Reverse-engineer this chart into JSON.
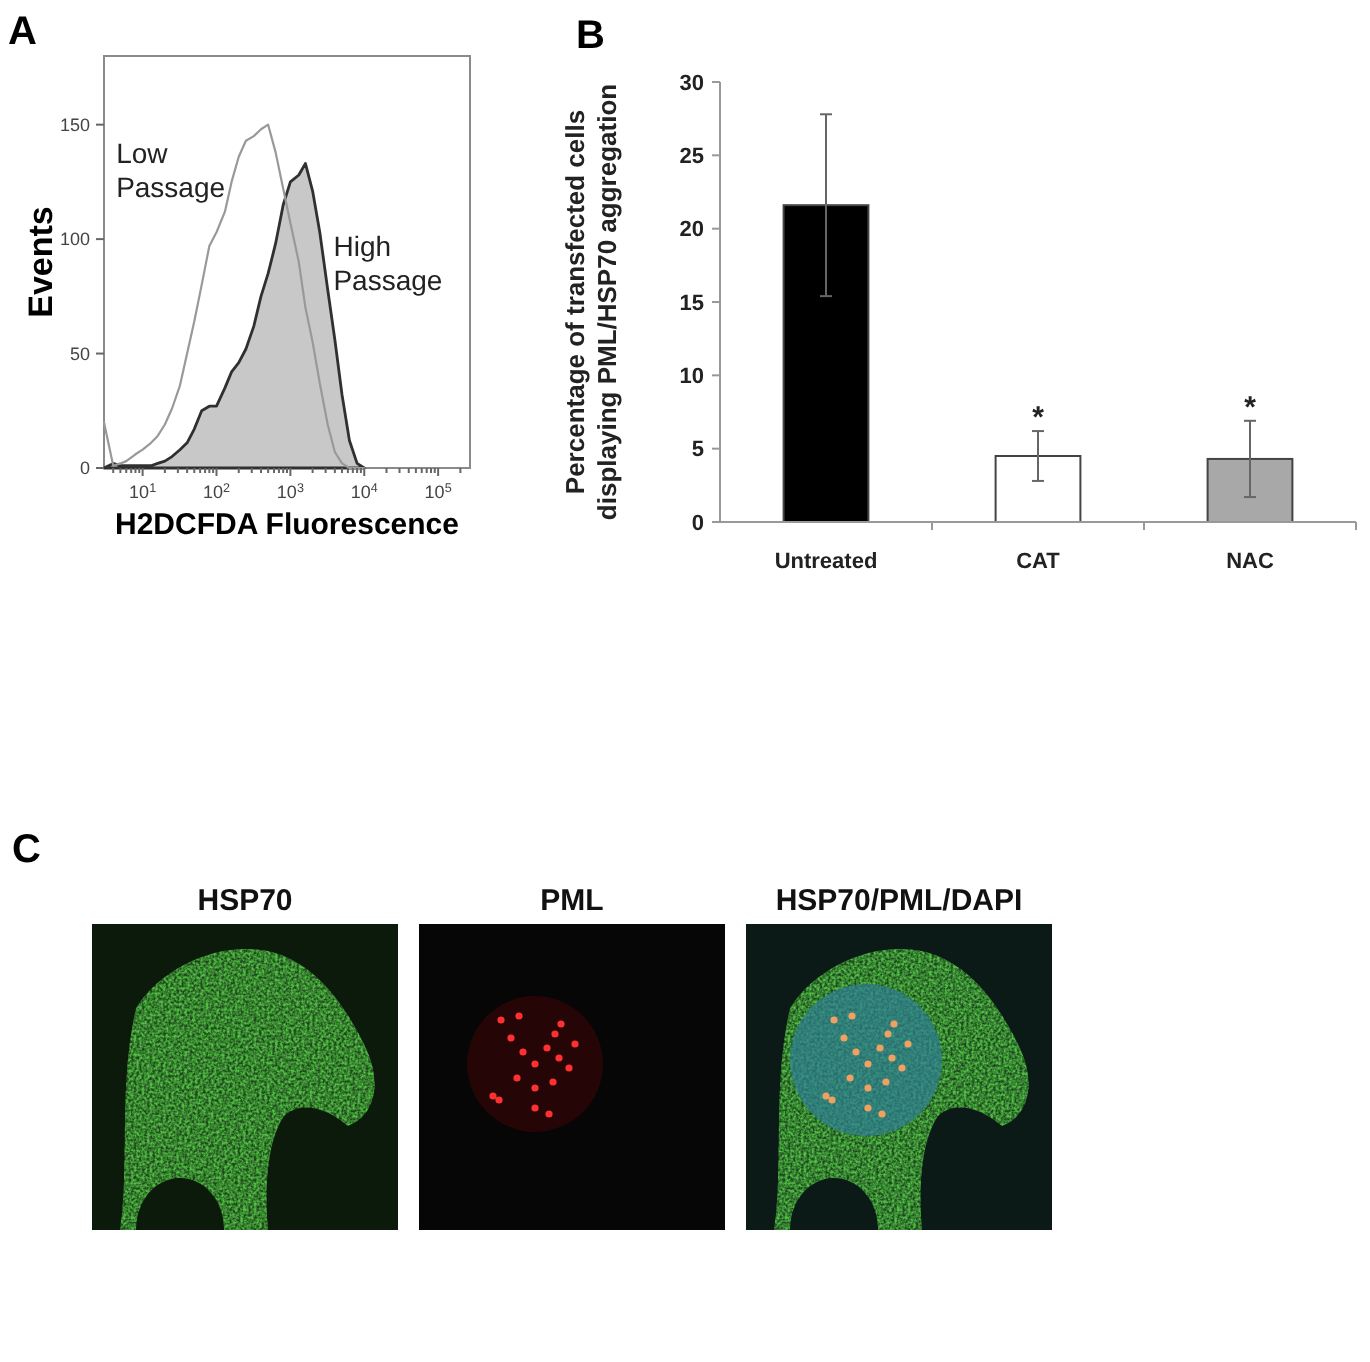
{
  "chart_data": [
    {
      "type": "line",
      "title": "A",
      "xlabel": "H2DCFDA Fluorescence",
      "ylabel": "Events",
      "log": "x",
      "xlim": [
        3,
        270000
      ],
      "xticks": [
        {
          "value": 4,
          "label": null
        },
        {
          "value": 5,
          "label": null
        },
        {
          "value": 6,
          "label": null
        },
        {
          "value": 7,
          "label": null
        },
        {
          "value": 8,
          "label": null
        },
        {
          "value": 9,
          "label": null
        },
        {
          "value": 10,
          "label": "10$^{1}$"
        },
        {
          "value": 20,
          "label": null
        },
        {
          "value": 30,
          "label": null
        },
        {
          "value": 40,
          "label": null
        },
        {
          "value": 50,
          "label": null
        },
        {
          "value": 60,
          "label": null
        },
        {
          "value": 70,
          "label": null
        },
        {
          "value": 80,
          "label": null
        },
        {
          "value": 90,
          "label": null
        },
        {
          "value": 100,
          "label": "10$^{2}$"
        },
        {
          "value": 200,
          "label": null
        },
        {
          "value": 300,
          "label": null
        },
        {
          "value": 400,
          "label": null
        },
        {
          "value": 500,
          "label": null
        },
        {
          "value": 600,
          "label": null
        },
        {
          "value": 700,
          "label": null
        },
        {
          "value": 800,
          "label": null
        },
        {
          "value": 900,
          "label": null
        },
        {
          "value": 1000,
          "label": "10$^{3}$"
        },
        {
          "value": 2000,
          "label": null
        },
        {
          "value": 3000,
          "label": null
        },
        {
          "value": 4000,
          "label": null
        },
        {
          "value": 5000,
          "label": null
        },
        {
          "value": 6000,
          "label": null
        },
        {
          "value": 7000,
          "label": null
        },
        {
          "value": 8000,
          "label": null
        },
        {
          "value": 9000,
          "label": null
        },
        {
          "value": 10000,
          "label": "10$^{4}$"
        },
        {
          "value": 20000,
          "label": null
        },
        {
          "value": 30000,
          "label": null
        },
        {
          "value": 40000,
          "label": null
        },
        {
          "value": 50000,
          "label": null
        },
        {
          "value": 60000,
          "label": null
        },
        {
          "value": 70000,
          "label": null
        },
        {
          "value": 80000,
          "label": null
        },
        {
          "value": 90000,
          "label": null
        },
        {
          "value": 100000,
          "label": "10$^{5}$"
        },
        {
          "value": 200000,
          "label": null
        }
      ],
      "ylim": [
        0,
        180
      ],
      "yticks": [
        0,
        50,
        100,
        150
      ],
      "x": [
        3,
        4,
        5,
        6,
        8,
        10,
        13,
        16,
        20,
        25,
        32,
        40,
        50,
        63,
        80,
        100,
        130,
        160,
        200,
        250,
        320,
        400,
        500,
        630,
        800,
        1000,
        1300,
        1600,
        2000,
        2500,
        3200,
        4000,
        5000,
        6300,
        8000,
        10000
      ],
      "series": [
        {
          "name": "Low Passage",
          "type": "line",
          "color": "#999999",
          "values": [
            20,
            1,
            2,
            3,
            6,
            8,
            11,
            14,
            19,
            26,
            36,
            50,
            64,
            80,
            97,
            103,
            112,
            125,
            136,
            143,
            145,
            148,
            150,
            138,
            122,
            107,
            90,
            70,
            55,
            37,
            19,
            7,
            2,
            0,
            0,
            0
          ]
        },
        {
          "name": "High Passage",
          "type": "area",
          "color": "#c8c8c8",
          "values": [
            0,
            2,
            1,
            1,
            1,
            1,
            1,
            2,
            3,
            5,
            8,
            11,
            17,
            25,
            27,
            27,
            35,
            42,
            46,
            52,
            62,
            75,
            85,
            98,
            115,
            125,
            128,
            133,
            121,
            103,
            78,
            56,
            32,
            12,
            2,
            0
          ]
        }
      ]
    },
    {
      "type": "bar",
      "title": "B",
      "ylabel": "Percentage of transfected cells\ndisplaying PML/HSP70 aggregation",
      "categories": [
        "Untreated",
        "CAT",
        "NAC"
      ],
      "values": [
        21.6,
        4.5,
        4.3
      ],
      "colors": [
        "#000000",
        "#ffffff",
        "#a8a8a8"
      ],
      "errors": [
        6.2,
        1.7,
        2.6
      ],
      "ylim": [
        0,
        30
      ],
      "yticks": [
        0,
        5,
        10,
        15,
        20,
        25,
        30
      ],
      "annotations": [
        {
          "text": "*",
          "x": "CAT",
          "y": 6.2
        },
        {
          "text": "*",
          "x": "NAC",
          "y": 6.9
        }
      ]
    },
    {
      "type": "other",
      "title": "C",
      "annotations": [
        "HSP70",
        "PML",
        "HSP70/PML/DAPI"
      ]
    }
  ]
}
